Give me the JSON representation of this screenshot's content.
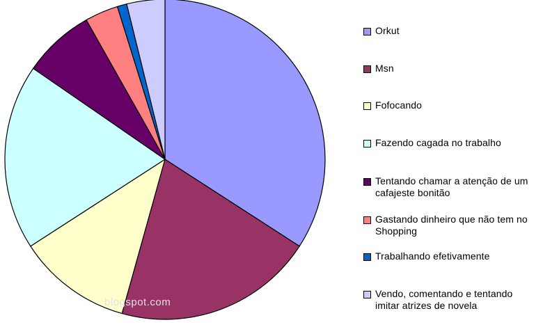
{
  "chart_data": {
    "type": "pie",
    "title": "",
    "categories": [
      "Orkut",
      "Msn",
      "Fofocando",
      "Fazendo cagada no trabalho",
      "Tentando chamar a atenção de um cafajeste bonitão",
      "Gastando dinheiro que não tem no Shopping",
      "Trabalhando efetivamente",
      "Vendo, comentando e tentando imitar atrizes de novela"
    ],
    "values": [
      35.5,
      21.0,
      12.0,
      19.5,
      7.5,
      3.5,
      1.0,
      4.0
    ],
    "colors": [
      "#9999ff",
      "#993366",
      "#ffffcc",
      "#ccffff",
      "#660066",
      "#ff8080",
      "#0066cc",
      "#ccccff"
    ],
    "start_angle_deg": 0,
    "direction": "clockwise",
    "legend_position": "right"
  },
  "watermark": "blogspot.com"
}
